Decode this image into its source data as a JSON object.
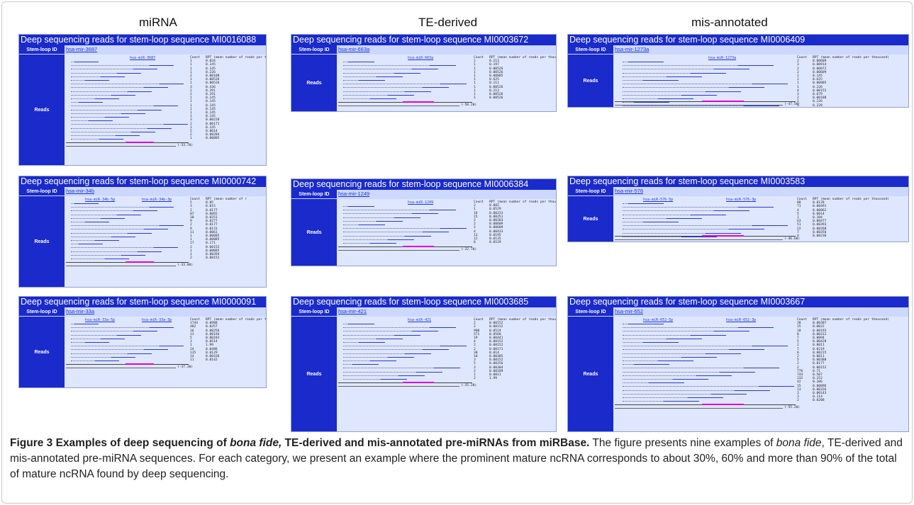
{
  "columns": [
    "miRNA",
    "TE-derived",
    "mis-annotated"
  ],
  "panels": [
    {
      "title": "Deep sequencing reads for stem-loop sequence MI0016088",
      "stem_id": "hsa-mir-3687",
      "mature": [
        "hsa-miR-3687"
      ],
      "counts": "Count\n1\n1\n1\n1\n2\n1\n1\n3\n2\n2\n1\n1\n1\n1\n1\n1\n3\n2\n1\n5\n2\n1",
      "rpt": "RPT (mean number of reads per thousand)\n0.034\n0.145\n0.145\n0.226\n0.00188\n0.00526\n0.00526\n0.436\n0.291\n0.291\n0.145\n0.145\n0.145\n0.145\n0.145\n0.145\n0.00228\n0.00171\n0.145\n0.0014\n0.00284\n0.00885",
      "energy": "(-33.70)"
    },
    {
      "title": "Deep sequencing reads for stem-loop sequence MI0003672",
      "stem_id": "hsa-mir-663a",
      "mature": [
        "hsa-miR-663a"
      ],
      "counts": "Count\n1\n1\n1\n1\n1\n1\n1\n1\n1\n1\n1",
      "rpt": "RPT (mean number of reads per thousand)\n0.213\n0.197\n0.00526\n0.00526\n0.00885\n0.625\n0.111\n0.00526\n0.213\n0.00526\n0.00526",
      "energy": "(-50.20)"
    },
    {
      "title": "Deep sequencing reads for stem-loop sequence MI0006409",
      "stem_id": "hsa-mir-1273a",
      "mature": [
        "hsa-miR-1273a"
      ],
      "counts": "Count\n2\n3\n2\n2\n1\n1\n1\n1\n4\n3\n2\n2\n1\n4",
      "rpt": "RPT (mean number of reads per thousand)\n0.00609\n0.00914\n0.00072\n0.00609\n0.145\n0.625\n0.00885\n0.226\n0.00152\n0.679\n0.00188\n0.226\n0.228\n0.00152",
      "energy": "(-47.50)"
    },
    {
      "title": "Deep sequencing reads for stem-loop sequence MI0000742",
      "stem_id": "hsa-mir-34b",
      "mature": [
        "hsa-miR-34b-5p",
        "hsa-miR-34b-3p"
      ],
      "counts": "Count\n5\n3\n2\n87\n10\n9\n2\n9\n11\n1\n1\n17\n2\n1\n1\n2",
      "rpt": "RPT (mean number of r\n0.05\n0.015\n0.0177\n0.0092\n0.0251\n0.0277\n0.0177\n0.0123\n0.0061\n0.00885\n0.00885\n0.171\n0.00152\n0.00885\n0.00394\n0.00152",
      "energy": "(-33.80)"
    },
    {
      "title": "Deep sequencing reads for stem-loop sequence MI0006384",
      "stem_id": "hsa-mir-1249",
      "mature": [
        "hsa-miR-1249"
      ],
      "counts": "Count\n2\n1\n16\n15\n2\n2\n2\n4\n13\n12\n8",
      "rpt": "RPT (mean number of reads per thousand)\n0.082\n0.0529\n0.00223\n0.00251\n0.00283\n0.00609\n0.00609\n0.00433\n0.0195\n0.0135\n0.0529",
      "energy": "(-32.70)"
    },
    {
      "title": "Deep sequencing reads for stem-loop sequence MI0003583",
      "stem_id": "hsa-mir-576",
      "mature": [
        "hsa-miR-576-5p",
        "hsa-miR-576-3p"
      ],
      "counts": "Count\n80\n71\n4\n5\n1\n63\n51\n22\n7\n4",
      "rpt": "RPT (mean number of reads per thousand)\n0.0128\n0.00491\n0.00862\n0.0014\n0.104\n0.00477\n0.00393\n0.00268\n0.00356\n0.00236",
      "energy": "(-46.60)"
    },
    {
      "title": "Deep sequencing reads for stem-loop sequence MI0000091",
      "stem_id": "hsa-mir-33a",
      "mature": [
        "hsa-miR-33a-5p",
        "hsa-miR-33a-3p"
      ],
      "counts": "Count\n1744\n482\n16\n13\n5\n3\n1\n24\n135\n14\n11",
      "rpt": "RPT (mean number of reads per thousand)\n0.0988\n0.0357\n0.00256\n0.00194\n0.00183\n0.0514\n1.99\n0.0486\n0.0129\n0.00336\n0.0142",
      "energy": "(-37.30)"
    },
    {
      "title": "Deep sequencing reads for stem-loop sequence MI0003685",
      "stem_id": "hsa-mir-421",
      "mature": [
        "hsa-miR-421"
      ],
      "counts": "Count\n2\n2\n900\n571\n19\n4\n2\n2\n30\n10\n3\n5\n3\n2\n1\n2",
      "rpt": "RPT (mean number of reads per thousand)\n0.00152\n0.00152\n0.0524\n0.0568\n0.00441\n0.00152\n0.00152\n0.00171\n0.014\n0.00385\n0.00152\n0.00256\n0.00304\n0.00189\n0.0011\n1.99",
      "energy": "(-35.20)"
    },
    {
      "title": "Deep sequencing reads for stem-loop sequence MI0003667",
      "stem_id": "hsa-mir-652",
      "mature": [
        "hsa-miR-652-5p",
        "hsa-miR-652-3p"
      ],
      "counts": "Count\n20\n15\n10\n8\n7\n5\n2\n7\n6\n2\n5\n2\n2\n776\n744\n232\n42\n15\n13\n3\n3\n2",
      "rpt": "RPT (mean number of reads per thousand)\n0.00387\n0.0022\n0.00193\n0.00312\n0.0094\n0.00428\n0.0011\n0.0219\n0.00215\n0.0011\n0.00388\n0.0177\n0.00152\n0.71\n0.507\n0.152\n0.206\n0.00896\n0.00326\n0.00143\n0.114\n0.0208",
      "energy": "(-55.20)"
    }
  ],
  "panel_labels": {
    "stem": "Stem-loop ID",
    "reads": "Reads"
  },
  "caption": {
    "bold_prefix": "Figure 3 Examples of deep sequencing of ",
    "bold_italic": "bona fide,",
    "bold_suffix": " TE-derived and mis-annotated pre-miRNAs from miRBase.",
    "text1": " The figure presents nine examples of ",
    "text_italic": "bona fide",
    "text2": ", TE-derived and mis-annotated pre-miRNA sequences. For each category, we present an example where the prominent mature ncRNA corresponds to about 30%, 60% and more than 90% of the total of mature ncRNA found by deep sequencing."
  }
}
